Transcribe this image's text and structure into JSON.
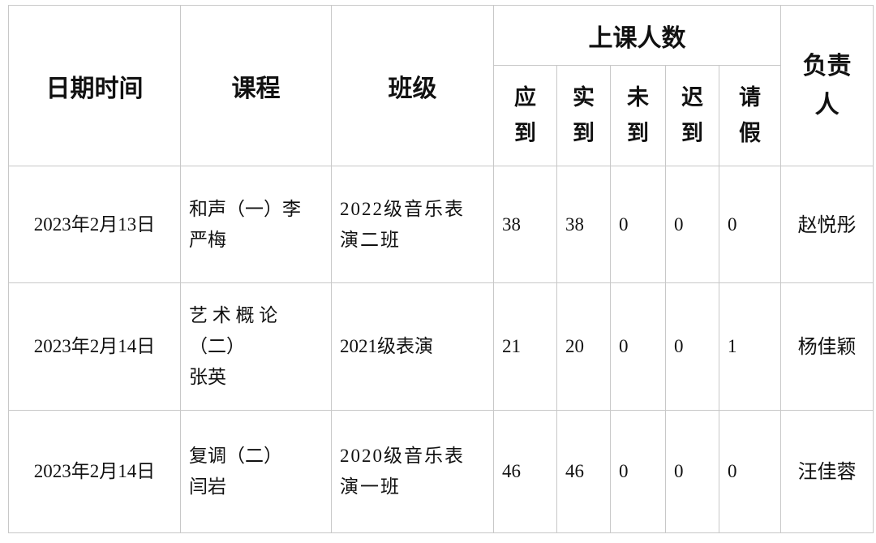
{
  "headers": {
    "date": "日期时间",
    "course": "课程",
    "class": "班级",
    "attendance_group": "上课人数",
    "expected": "应\n到",
    "present": "实\n到",
    "absent": "未\n到",
    "late": "迟\n到",
    "leave": "请\n假",
    "responsible": "负责\n人"
  },
  "rows": [
    {
      "date": "2023年2月13日",
      "course": "和声（一）李\n严梅",
      "class": "2022级音乐表\n演二班",
      "expected": "38",
      "present": "38",
      "absent": "0",
      "late": "0",
      "leave": "0",
      "responsible": "赵悦彤"
    },
    {
      "date": "2023年2月14日",
      "course": "艺 术 概 论\n（二）\n张英",
      "class": "2021级表演",
      "expected": "21",
      "present": "20",
      "absent": "0",
      "late": "0",
      "leave": "1",
      "responsible": "杨佳颖"
    },
    {
      "date": "2023年2月14日",
      "course": "复调（二）\n闫岩",
      "class": "2020级音乐表\n演一班",
      "expected": "46",
      "present": "46",
      "absent": "0",
      "late": "0",
      "leave": "0",
      "responsible": "汪佳蓉"
    }
  ]
}
